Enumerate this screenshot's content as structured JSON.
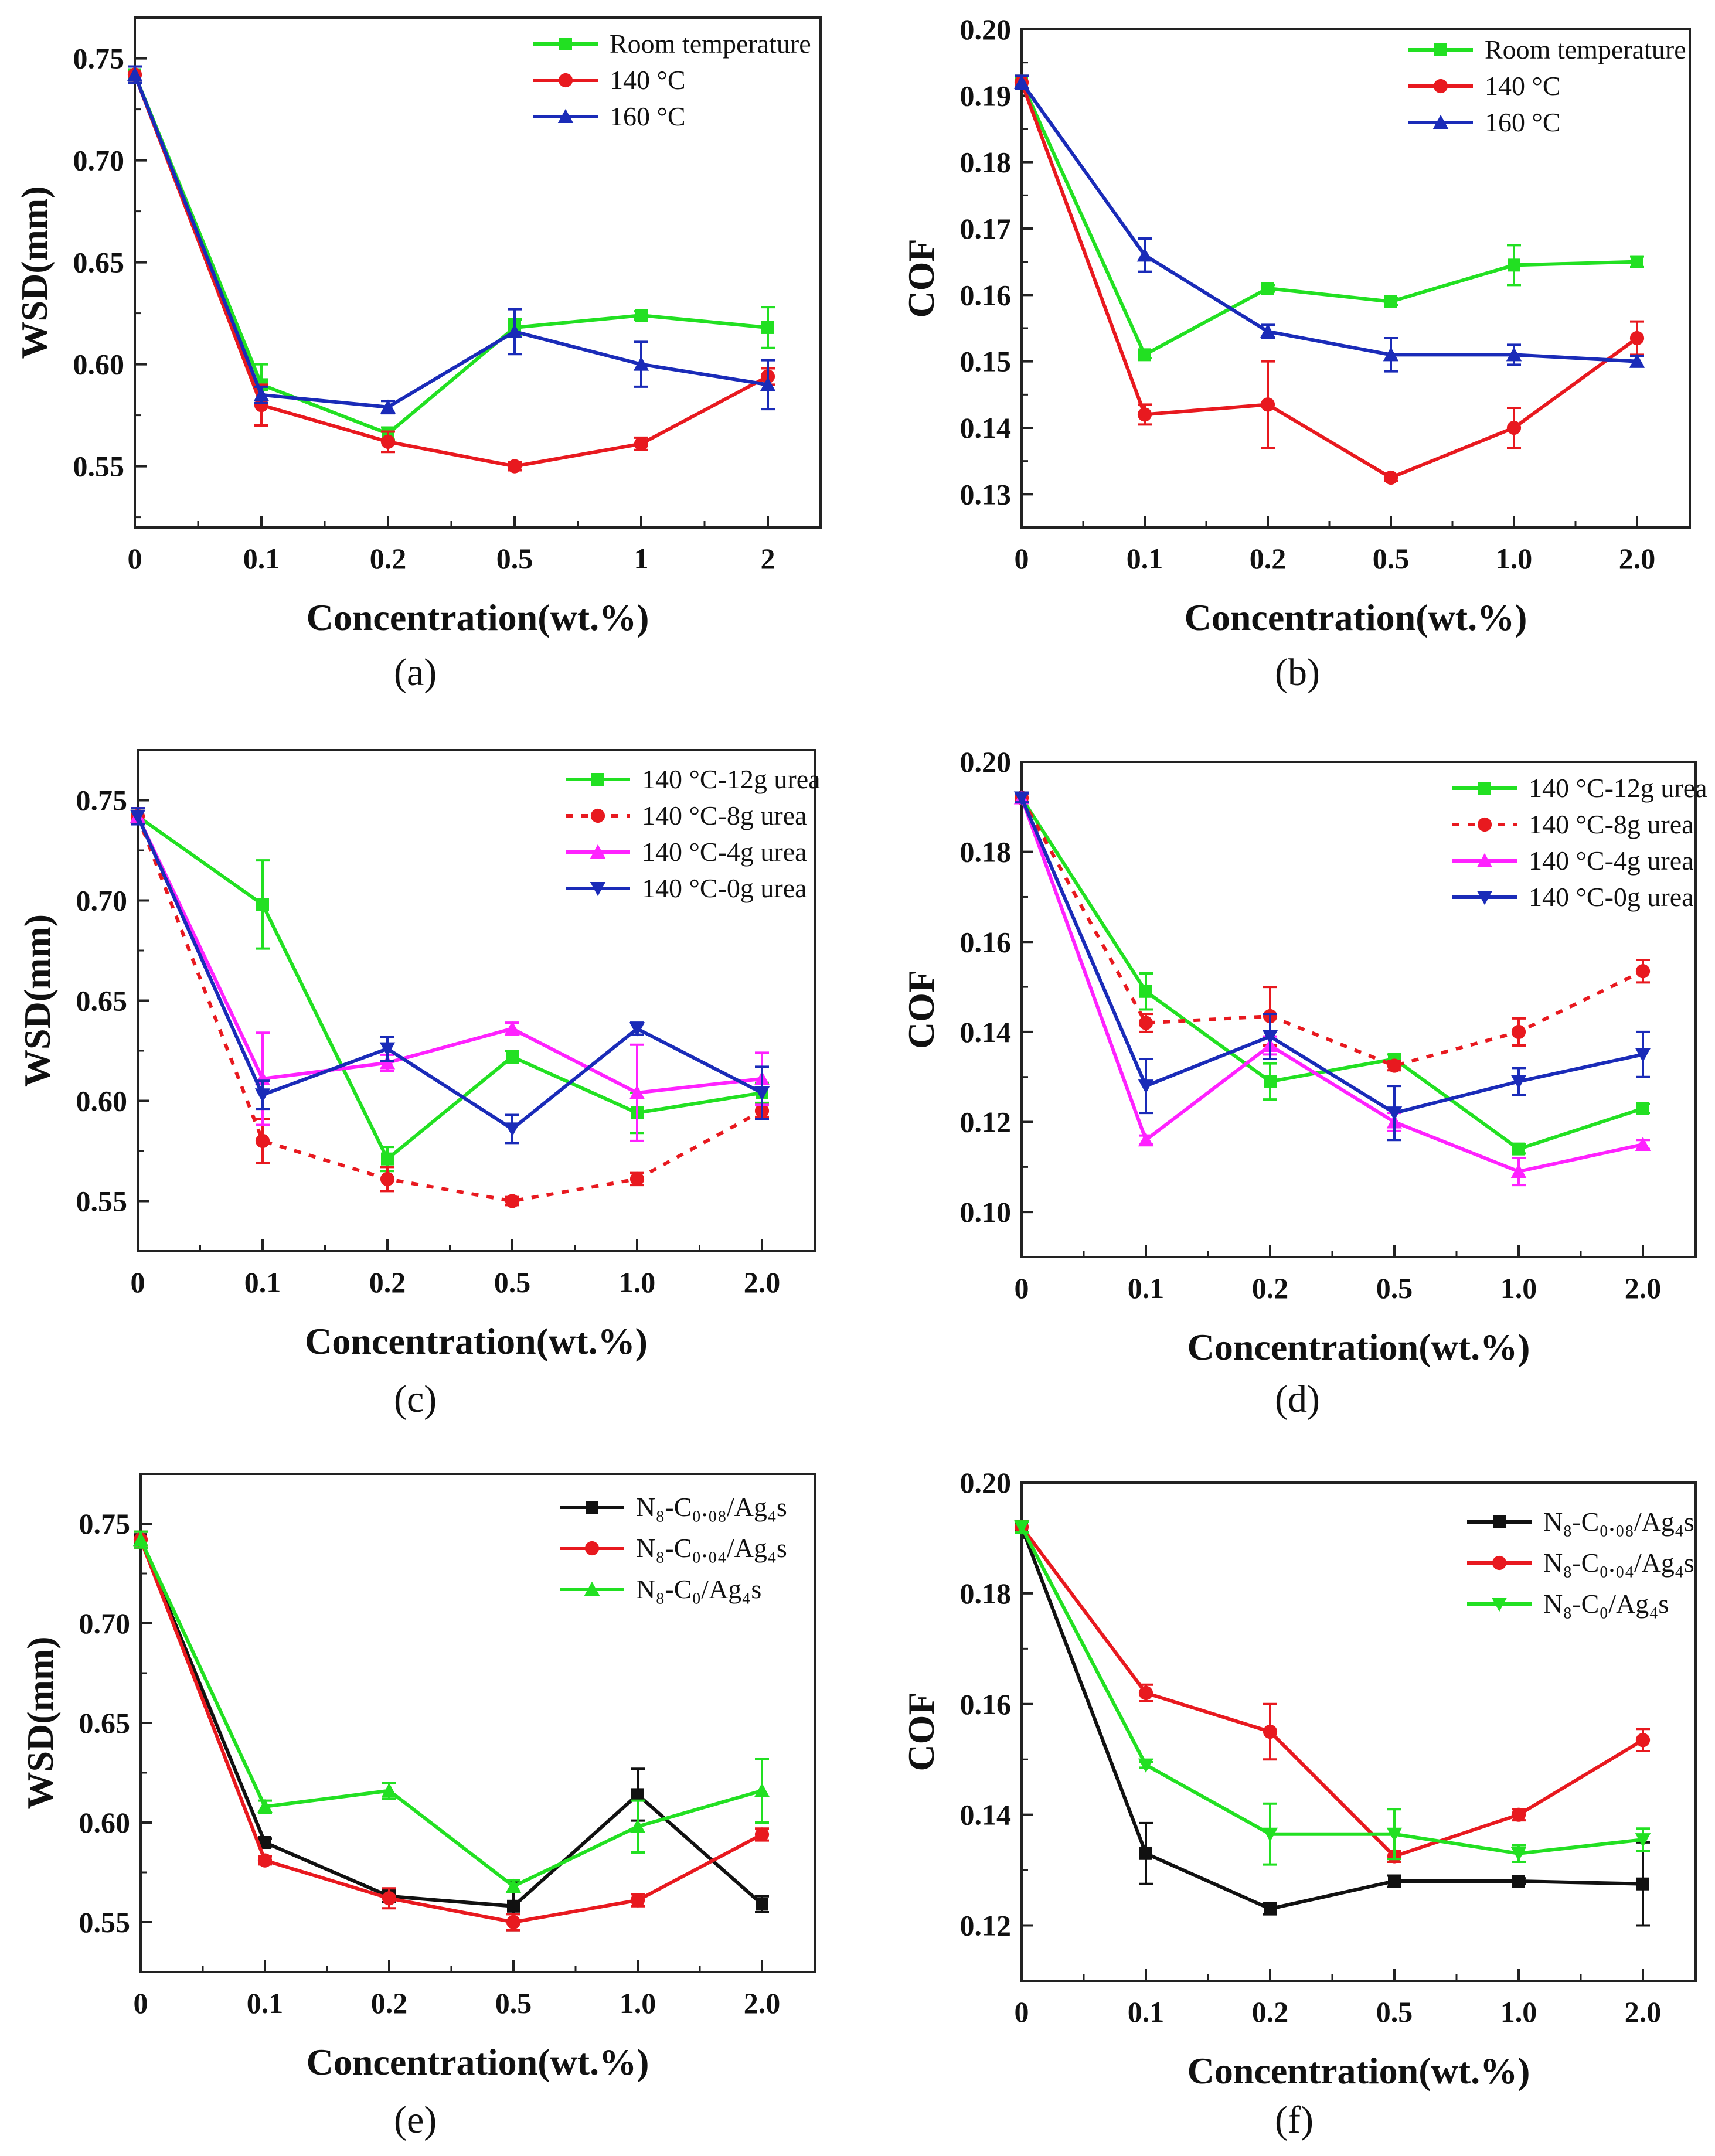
{
  "chart_data": [
    {
      "panel": "a",
      "caption": "(a)",
      "type": "line",
      "title": "",
      "xlabel": "Concentration(wt.%)",
      "ylabel": "WSD(mm)",
      "categories": [
        "0",
        "0.1",
        "0.2",
        "0.5",
        "1",
        "2"
      ],
      "ylim": [
        0.52,
        0.77
      ],
      "yticks": [
        0.55,
        0.6,
        0.65,
        0.7,
        0.75
      ],
      "ytick_labels": [
        "0.55",
        "0.60",
        "0.65",
        "0.70",
        "0.75"
      ],
      "legend_position": "top-right",
      "series": [
        {
          "name": "Room temperature",
          "color": "#22e022",
          "marker": "square",
          "dashed": false,
          "values": [
            0.742,
            0.59,
            0.566,
            0.618,
            0.624,
            0.618
          ],
          "errors": [
            0.004,
            0.01,
            0.003,
            0.004,
            0.002,
            0.01
          ]
        },
        {
          "name": "140 °C",
          "color": "#e8191f",
          "marker": "circle",
          "dashed": false,
          "values": [
            0.742,
            0.58,
            0.562,
            0.55,
            0.561,
            0.594
          ],
          "errors": [
            0.004,
            0.01,
            0.005,
            0.002,
            0.003,
            0.004
          ]
        },
        {
          "name": "160 °C",
          "color": "#1a2bb8",
          "marker": "triangle-up",
          "dashed": false,
          "values": [
            0.742,
            0.585,
            0.579,
            0.616,
            0.6,
            0.59
          ],
          "errors": [
            0.004,
            0.004,
            0.003,
            0.011,
            0.011,
            0.012
          ]
        }
      ]
    },
    {
      "panel": "b",
      "caption": "(b)",
      "type": "line",
      "title": "",
      "xlabel": "Concentration(wt.%)",
      "ylabel": "COF",
      "categories": [
        "0",
        "0.1",
        "0.2",
        "0.5",
        "1.0",
        "2.0"
      ],
      "ylim": [
        0.125,
        0.2
      ],
      "yticks": [
        0.13,
        0.14,
        0.15,
        0.16,
        0.17,
        0.18,
        0.19,
        0.2
      ],
      "ytick_labels": [
        "0.13",
        "0.14",
        "0.15",
        "0.16",
        "0.17",
        "0.18",
        "0.19",
        "0.20"
      ],
      "legend_position": "top-right",
      "series": [
        {
          "name": "Room temperature",
          "color": "#22e022",
          "marker": "square",
          "dashed": false,
          "values": [
            0.192,
            0.151,
            0.161,
            0.159,
            0.1645,
            0.165
          ],
          "errors": [
            0.001,
            0.0005,
            0.0005,
            0.0005,
            0.003,
            0.0008
          ]
        },
        {
          "name": "140 °C",
          "color": "#e8191f",
          "marker": "circle",
          "dashed": false,
          "values": [
            0.192,
            0.142,
            0.1435,
            0.1325,
            0.14,
            0.1535
          ],
          "errors": [
            0.001,
            0.0015,
            0.0065,
            0.0005,
            0.003,
            0.0025
          ]
        },
        {
          "name": "160 °C",
          "color": "#1a2bb8",
          "marker": "triangle-up",
          "dashed": false,
          "values": [
            0.192,
            0.166,
            0.1545,
            0.151,
            0.151,
            0.15
          ],
          "errors": [
            0.001,
            0.0025,
            0.001,
            0.0025,
            0.0015,
            0.0008
          ]
        }
      ]
    },
    {
      "panel": "c",
      "caption": "(c)",
      "type": "line",
      "title": "",
      "xlabel": "Concentration(wt.%)",
      "ylabel": "WSD(mm)",
      "categories": [
        "0",
        "0.1",
        "0.2",
        "0.5",
        "1.0",
        "2.0"
      ],
      "ylim": [
        0.525,
        0.775
      ],
      "yticks": [
        0.55,
        0.6,
        0.65,
        0.7,
        0.75
      ],
      "ytick_labels": [
        "0.55",
        "0.60",
        "0.65",
        "0.70",
        "0.75"
      ],
      "legend_position": "top-right",
      "series": [
        {
          "name": "140 °C-12g urea",
          "color": "#22e022",
          "marker": "square",
          "dashed": false,
          "values": [
            0.742,
            0.698,
            0.571,
            0.622,
            0.594,
            0.604
          ],
          "errors": [
            0.004,
            0.022,
            0.006,
            0.003,
            0.01,
            0.005
          ]
        },
        {
          "name": "140 °C-8g urea",
          "color": "#e8191f",
          "marker": "circle",
          "dashed": true,
          "values": [
            0.742,
            0.58,
            0.561,
            0.55,
            0.561,
            0.595
          ],
          "errors": [
            0.004,
            0.011,
            0.006,
            0.002,
            0.003,
            0.003
          ]
        },
        {
          "name": "140 °C-4g urea",
          "color": "#ff22ff",
          "marker": "triangle-up",
          "dashed": false,
          "values": [
            0.742,
            0.611,
            0.619,
            0.636,
            0.604,
            0.611
          ],
          "errors": [
            0.004,
            0.023,
            0.004,
            0.003,
            0.024,
            0.013
          ]
        },
        {
          "name": "140 °C-0g urea",
          "color": "#1a2bb8",
          "marker": "triangle-down",
          "dashed": false,
          "values": [
            0.742,
            0.603,
            0.626,
            0.586,
            0.636,
            0.604
          ],
          "errors": [
            0.004,
            0.007,
            0.006,
            0.007,
            0.003,
            0.013
          ]
        }
      ]
    },
    {
      "panel": "d",
      "caption": "(d)",
      "type": "line",
      "title": "",
      "xlabel": "Concentration(wt.%)",
      "ylabel": "COF",
      "categories": [
        "0",
        "0.1",
        "0.2",
        "0.5",
        "1.0",
        "2.0"
      ],
      "ylim": [
        0.09,
        0.2
      ],
      "yticks": [
        0.1,
        0.12,
        0.14,
        0.16,
        0.18,
        0.2
      ],
      "ytick_labels": [
        "0.10",
        "0.12",
        "0.14",
        "0.16",
        "0.18",
        "0.20"
      ],
      "legend_position": "top-right",
      "series": [
        {
          "name": "140 °C-12g urea",
          "color": "#22e022",
          "marker": "square",
          "dashed": false,
          "values": [
            0.192,
            0.149,
            0.129,
            0.134,
            0.114,
            0.123
          ],
          "errors": [
            0.001,
            0.004,
            0.004,
            0.001,
            0.001,
            0.001
          ]
        },
        {
          "name": "140 °C-8g urea",
          "color": "#e8191f",
          "marker": "circle",
          "dashed": true,
          "values": [
            0.192,
            0.142,
            0.1435,
            0.1325,
            0.14,
            0.1535
          ],
          "errors": [
            0.001,
            0.002,
            0.0065,
            0.001,
            0.003,
            0.0025
          ]
        },
        {
          "name": "140 °C-4g urea",
          "color": "#ff22ff",
          "marker": "triangle-up",
          "dashed": false,
          "values": [
            0.192,
            0.116,
            0.137,
            0.12,
            0.109,
            0.115
          ],
          "errors": [
            0.001,
            0.001,
            0.002,
            0.002,
            0.003,
            0.001
          ]
        },
        {
          "name": "140 °C-0g urea",
          "color": "#1a2bb8",
          "marker": "triangle-down",
          "dashed": false,
          "values": [
            0.192,
            0.128,
            0.139,
            0.122,
            0.129,
            0.135
          ],
          "errors": [
            0.001,
            0.006,
            0.005,
            0.006,
            0.003,
            0.005
          ]
        }
      ]
    },
    {
      "panel": "e",
      "caption": "(e)",
      "type": "line",
      "title": "",
      "xlabel": "Concentration(wt.%)",
      "ylabel": "WSD(mm)",
      "categories": [
        "0",
        "0.1",
        "0.2",
        "0.5",
        "1.0",
        "2.0"
      ],
      "ylim": [
        0.525,
        0.775
      ],
      "yticks": [
        0.55,
        0.6,
        0.65,
        0.7,
        0.75
      ],
      "ytick_labels": [
        "0.55",
        "0.60",
        "0.65",
        "0.70",
        "0.75"
      ],
      "legend_position": "top-right",
      "series": [
        {
          "name": "N₈-C₀.₀₈/Ag₄s",
          "color": "#111111",
          "marker": "square",
          "dashed": false,
          "values": [
            0.742,
            0.59,
            0.563,
            0.558,
            0.614,
            0.559
          ],
          "errors": [
            0.004,
            0.002,
            0.003,
            0.012,
            0.013,
            0.004
          ]
        },
        {
          "name": "N₈-C₀.₀₄/Ag₄s",
          "color": "#e8191f",
          "marker": "circle",
          "dashed": false,
          "values": [
            0.742,
            0.581,
            0.562,
            0.55,
            0.561,
            0.594
          ],
          "errors": [
            0.004,
            0.002,
            0.005,
            0.004,
            0.003,
            0.003
          ]
        },
        {
          "name": "N₈-C₀/Ag₄s",
          "color": "#22e022",
          "marker": "triangle-up",
          "dashed": false,
          "values": [
            0.742,
            0.608,
            0.616,
            0.568,
            0.598,
            0.616
          ],
          "errors": [
            0.004,
            0.003,
            0.004,
            0.003,
            0.013,
            0.016
          ]
        }
      ]
    },
    {
      "panel": "f",
      "caption": "(f)",
      "type": "line",
      "title": "",
      "xlabel": "Concentration(wt.%)",
      "ylabel": "COF",
      "categories": [
        "0",
        "0.1",
        "0.2",
        "0.5",
        "1.0",
        "2.0"
      ],
      "ylim": [
        0.11,
        0.2
      ],
      "yticks": [
        0.12,
        0.14,
        0.16,
        0.18,
        0.2
      ],
      "ytick_labels": [
        "0.12",
        "0.14",
        "0.16",
        "0.18",
        "0.20"
      ],
      "legend_position": "top-right",
      "series": [
        {
          "name": "N₈-C₀.₀₈/Ag₄s",
          "color": "#111111",
          "marker": "square",
          "dashed": false,
          "values": [
            0.192,
            0.133,
            0.123,
            0.128,
            0.128,
            0.1275
          ],
          "errors": [
            0.001,
            0.0055,
            0.001,
            0.001,
            0.0005,
            0.0075
          ]
        },
        {
          "name": "N₈-C₀.₀₄/Ag₄s",
          "color": "#e8191f",
          "marker": "circle",
          "dashed": false,
          "values": [
            0.192,
            0.162,
            0.155,
            0.1325,
            0.14,
            0.1535
          ],
          "errors": [
            0.001,
            0.0015,
            0.005,
            0.001,
            0.001,
            0.002
          ]
        },
        {
          "name": "N₈-C₀/Ag₄s",
          "color": "#22e022",
          "marker": "triangle-down",
          "dashed": false,
          "values": [
            0.192,
            0.149,
            0.1365,
            0.1365,
            0.133,
            0.1355
          ],
          "errors": [
            0.001,
            0.0005,
            0.0055,
            0.0045,
            0.0015,
            0.002
          ]
        }
      ]
    }
  ]
}
